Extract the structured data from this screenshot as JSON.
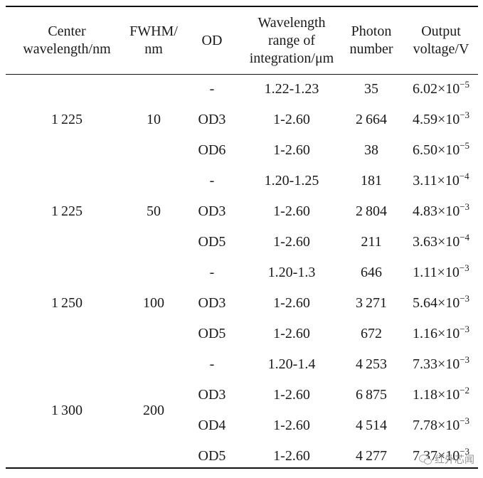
{
  "table": {
    "headers": [
      [
        "Center",
        "wavelength/nm"
      ],
      [
        "FWHM/",
        "nm"
      ],
      [
        "OD"
      ],
      [
        "Wavelength",
        "range of",
        "integration/μm"
      ],
      [
        "Photon",
        "number"
      ],
      [
        "Output",
        "voltage/V"
      ]
    ],
    "groups": [
      {
        "center": "1 225",
        "fwhm": "10",
        "rows": [
          {
            "od": "-",
            "range": "1.22-1.23",
            "photons": "35",
            "mant": "6.02×10",
            "exp": "−5"
          },
          {
            "od": "OD3",
            "range": "1-2.60",
            "photons": "2 664",
            "mant": "4.59×10",
            "exp": "−3"
          },
          {
            "od": "OD6",
            "range": "1-2.60",
            "photons": "38",
            "mant": "6.50×10",
            "exp": "−5"
          }
        ]
      },
      {
        "center": "1 225",
        "fwhm": "50",
        "rows": [
          {
            "od": "-",
            "range": "1.20-1.25",
            "photons": "181",
            "mant": "3.11×10",
            "exp": "−4"
          },
          {
            "od": "OD3",
            "range": "1-2.60",
            "photons": "2 804",
            "mant": "4.83×10",
            "exp": "−3"
          },
          {
            "od": "OD5",
            "range": "1-2.60",
            "photons": "211",
            "mant": "3.63×10",
            "exp": "−4"
          }
        ]
      },
      {
        "center": "1 250",
        "fwhm": "100",
        "rows": [
          {
            "od": "-",
            "range": "1.20-1.3",
            "photons": "646",
            "mant": "1.11×10",
            "exp": "−3"
          },
          {
            "od": "OD3",
            "range": "1-2.60",
            "photons": "3 271",
            "mant": "5.64×10",
            "exp": "−3"
          },
          {
            "od": "OD5",
            "range": "1-2.60",
            "photons": "672",
            "mant": "1.16×10",
            "exp": "−3"
          }
        ]
      },
      {
        "center": "1 300",
        "fwhm": "200",
        "rows": [
          {
            "od": "-",
            "range": "1.20-1.4",
            "photons": "4 253",
            "mant": "7.33×10",
            "exp": "−3"
          },
          {
            "od": "OD3",
            "range": "1-2.60",
            "photons": "6 875",
            "mant": "1.18×10",
            "exp": "−2"
          },
          {
            "od": "OD4",
            "range": "1-2.60",
            "photons": "4 514",
            "mant": "7.78×10",
            "exp": "−3"
          },
          {
            "od": "OD5",
            "range": "1-2.60",
            "photons": "4 277",
            "mant": "7.37×10",
            "exp": "−3"
          }
        ]
      }
    ]
  },
  "watermark": {
    "icon": "wechat-icon",
    "text": "红外芯闻"
  }
}
